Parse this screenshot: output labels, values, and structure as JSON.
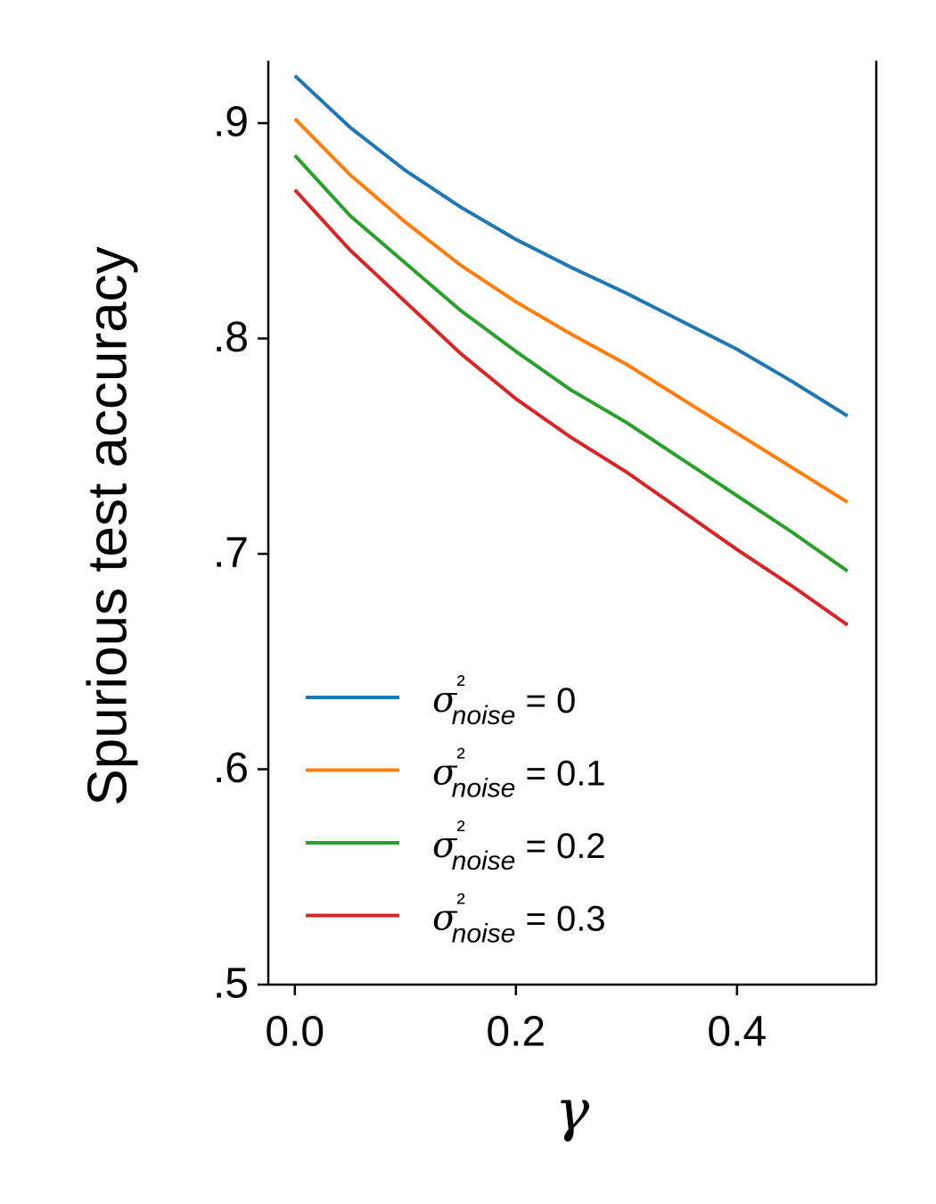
{
  "chart_data": {
    "type": "line",
    "x_label": "γ",
    "y_label": "Spurious test accuracy",
    "x": [
      0,
      0.05,
      0.1,
      0.15,
      0.2,
      0.25,
      0.3,
      0.35,
      0.4,
      0.45,
      0.5
    ],
    "series": [
      {
        "name": "σ²noise = 0",
        "color": "#1f77b4",
        "values": [
          0.922,
          0.898,
          0.878,
          0.861,
          0.846,
          0.833,
          0.821,
          0.808,
          0.795,
          0.78,
          0.764
        ]
      },
      {
        "name": "σ²noise = 0.1",
        "color": "#ff7f0e",
        "values": [
          0.902,
          0.876,
          0.854,
          0.834,
          0.817,
          0.802,
          0.788,
          0.772,
          0.756,
          0.74,
          0.724
        ]
      },
      {
        "name": "σ²noise = 0.2",
        "color": "#2ca02c",
        "values": [
          0.885,
          0.857,
          0.835,
          0.813,
          0.794,
          0.776,
          0.761,
          0.744,
          0.727,
          0.71,
          0.692
        ]
      },
      {
        "name": "σ²noise = 0.3",
        "color": "#d62728",
        "values": [
          0.869,
          0.841,
          0.817,
          0.793,
          0.772,
          0.754,
          0.738,
          0.72,
          0.702,
          0.685,
          0.667
        ]
      }
    ],
    "xlim": [
      -0.024,
      0.526
    ],
    "xticks": [
      {
        "value": 0,
        "label": "0.0"
      },
      0.2,
      0.4
    ],
    "ylim": [
      0.5,
      0.929
    ],
    "yticks": [
      {
        "value": 0.5,
        "label": ".5"
      },
      {
        "value": 0.6,
        "label": ".6"
      },
      {
        "value": 0.7,
        "label": ".7"
      },
      {
        "value": 0.8,
        "label": ".8"
      },
      {
        "value": 0.9,
        "label": ".9"
      }
    ],
    "grid": false,
    "legend": "lower left"
  }
}
